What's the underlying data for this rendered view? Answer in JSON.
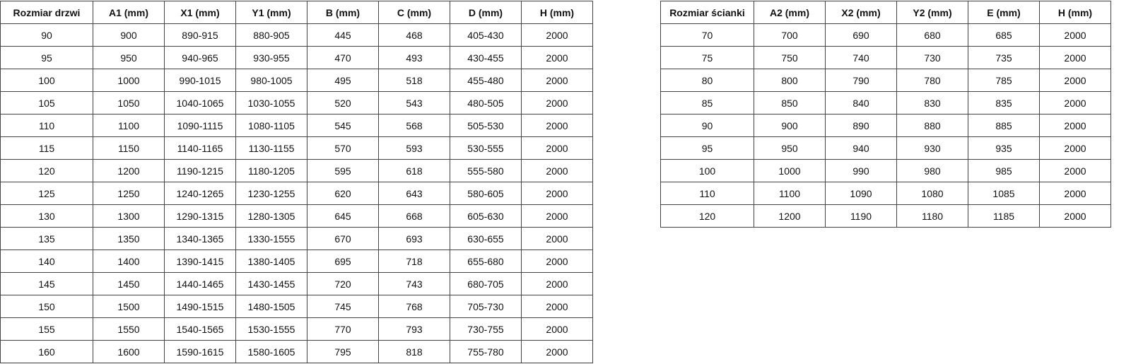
{
  "door_table": {
    "headers": [
      "Rozmiar drzwi",
      "A1 (mm)",
      "X1 (mm)",
      "Y1 (mm)",
      "B (mm)",
      "C (mm)",
      "D (mm)",
      "H (mm)"
    ],
    "rows": [
      [
        "90",
        "900",
        "890-915",
        "880-905",
        "445",
        "468",
        "405-430",
        "2000"
      ],
      [
        "95",
        "950",
        "940-965",
        "930-955",
        "470",
        "493",
        "430-455",
        "2000"
      ],
      [
        "100",
        "1000",
        "990-1015",
        "980-1005",
        "495",
        "518",
        "455-480",
        "2000"
      ],
      [
        "105",
        "1050",
        "1040-1065",
        "1030-1055",
        "520",
        "543",
        "480-505",
        "2000"
      ],
      [
        "110",
        "1100",
        "1090-1115",
        "1080-1105",
        "545",
        "568",
        "505-530",
        "2000"
      ],
      [
        "115",
        "1150",
        "1140-1165",
        "1130-1155",
        "570",
        "593",
        "530-555",
        "2000"
      ],
      [
        "120",
        "1200",
        "1190-1215",
        "1180-1205",
        "595",
        "618",
        "555-580",
        "2000"
      ],
      [
        "125",
        "1250",
        "1240-1265",
        "1230-1255",
        "620",
        "643",
        "580-605",
        "2000"
      ],
      [
        "130",
        "1300",
        "1290-1315",
        "1280-1305",
        "645",
        "668",
        "605-630",
        "2000"
      ],
      [
        "135",
        "1350",
        "1340-1365",
        "1330-1555",
        "670",
        "693",
        "630-655",
        "2000"
      ],
      [
        "140",
        "1400",
        "1390-1415",
        "1380-1405",
        "695",
        "718",
        "655-680",
        "2000"
      ],
      [
        "145",
        "1450",
        "1440-1465",
        "1430-1455",
        "720",
        "743",
        "680-705",
        "2000"
      ],
      [
        "150",
        "1500",
        "1490-1515",
        "1480-1505",
        "745",
        "768",
        "705-730",
        "2000"
      ],
      [
        "155",
        "1550",
        "1540-1565",
        "1530-1555",
        "770",
        "793",
        "730-755",
        "2000"
      ],
      [
        "160",
        "1600",
        "1590-1615",
        "1580-1605",
        "795",
        "818",
        "755-780",
        "2000"
      ]
    ]
  },
  "wall_table": {
    "headers": [
      "Rozmiar ścianki",
      "A2 (mm)",
      "X2 (mm)",
      "Y2 (mm)",
      "E (mm)",
      "H (mm)"
    ],
    "rows": [
      [
        "70",
        "700",
        "690",
        "680",
        "685",
        "2000"
      ],
      [
        "75",
        "750",
        "740",
        "730",
        "735",
        "2000"
      ],
      [
        "80",
        "800",
        "790",
        "780",
        "785",
        "2000"
      ],
      [
        "85",
        "850",
        "840",
        "830",
        "835",
        "2000"
      ],
      [
        "90",
        "900",
        "890",
        "880",
        "885",
        "2000"
      ],
      [
        "95",
        "950",
        "940",
        "930",
        "935",
        "2000"
      ],
      [
        "100",
        "1000",
        "990",
        "980",
        "985",
        "2000"
      ],
      [
        "110",
        "1100",
        "1090",
        "1080",
        "1085",
        "2000"
      ],
      [
        "120",
        "1200",
        "1190",
        "1180",
        "1185",
        "2000"
      ]
    ]
  }
}
